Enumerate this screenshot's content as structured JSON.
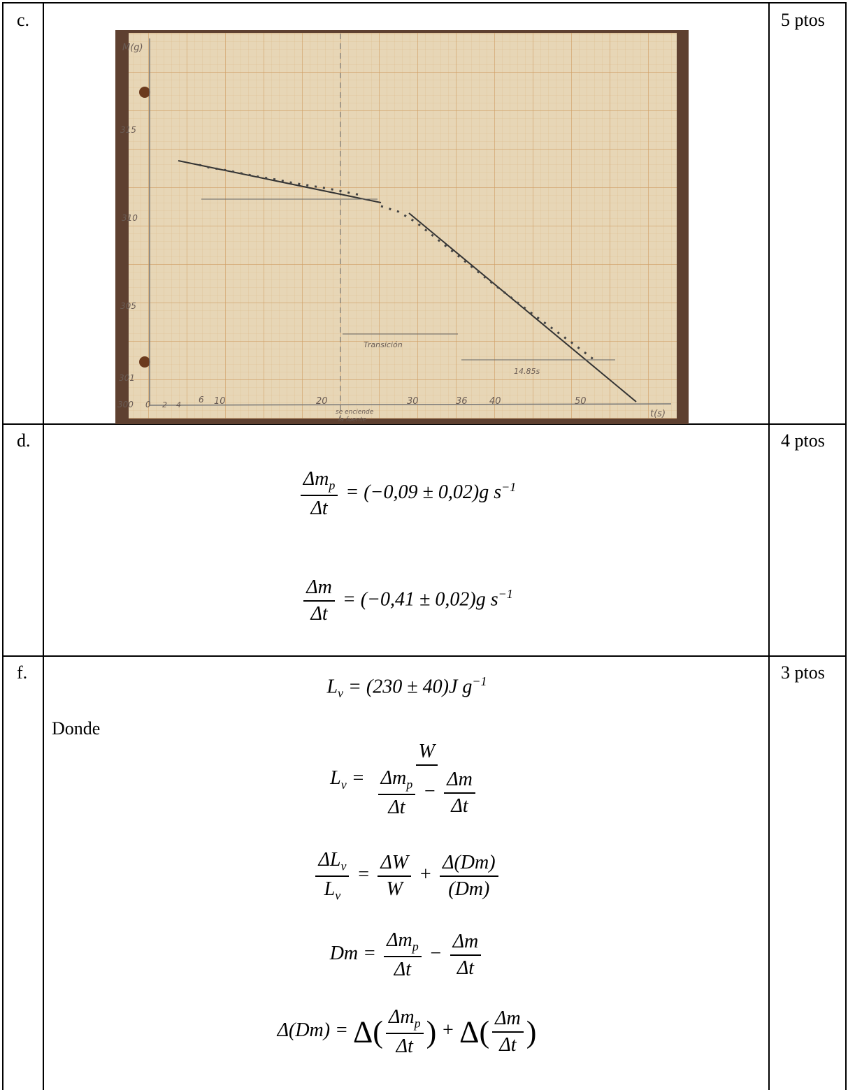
{
  "table": {
    "rows": [
      {
        "label": "c.",
        "points": "5 ptos",
        "figure": {
          "y_label": "M(g)",
          "y_ticks": [
            "315",
            "310",
            "305",
            "301",
            "300"
          ],
          "x_ticks": [
            "0",
            "2",
            "4",
            "6",
            "10",
            "20",
            "30",
            "36",
            "40",
            "50"
          ],
          "x_label": "t(s)",
          "annotations": [
            "Transición",
            "se enciende",
            "la fuente",
            "14.85s"
          ]
        }
      },
      {
        "label": "d.",
        "points": "4 ptos",
        "formulas": [
          {
            "num": "Δm",
            "num_sub": "p",
            "den": "Δt",
            "rhs": "= (−0,09 ± 0,02)g s",
            "rhs_sup": "−1"
          },
          {
            "num": "Δm",
            "den": "Δt",
            "rhs": "= (−0,41 ± 0,02)g s",
            "rhs_sup": "−1"
          }
        ]
      },
      {
        "label": "f.",
        "points": "3 ptos",
        "result": {
          "lhs": "L",
          "lhs_sub": "v",
          "rhs": "= (230 ± 40)J g",
          "rhs_sup": "−1"
        },
        "note": "Donde",
        "lv_formula": {
          "lhs": "L",
          "lhs_sub": "v",
          "eq": "=",
          "num": "W",
          "a_num": "Δm",
          "a_sub": "p",
          "a_den": "Δt",
          "minus": "−",
          "b_num": "Δm",
          "b_den": "Δt"
        },
        "rel_error": {
          "lhs_num": "ΔL",
          "lhs_num_sub": "v",
          "lhs_den": "L",
          "lhs_den_sub": "v",
          "eq": "=",
          "t1_num": "ΔW",
          "t1_den": "W",
          "plus": "+",
          "t2_num": "Δ(Dm)",
          "t2_den": "(Dm)"
        },
        "dm": {
          "lhs": "Dm",
          "eq": "=",
          "a_num": "Δm",
          "a_sub": "p",
          "a_den": "Δt",
          "minus": "−",
          "b_num": "Δm",
          "b_den": "Δt"
        },
        "ddm": {
          "lhs": "Δ(Dm)",
          "eq": "=",
          "open1": "Δ(",
          "a_num": "Δm",
          "a_sub": "p",
          "a_den": "Δt",
          "close1": ")",
          "plus": "+",
          "open2": "Δ(",
          "b_num": "Δm",
          "b_den": "Δt",
          "close2": ")"
        }
      }
    ]
  }
}
